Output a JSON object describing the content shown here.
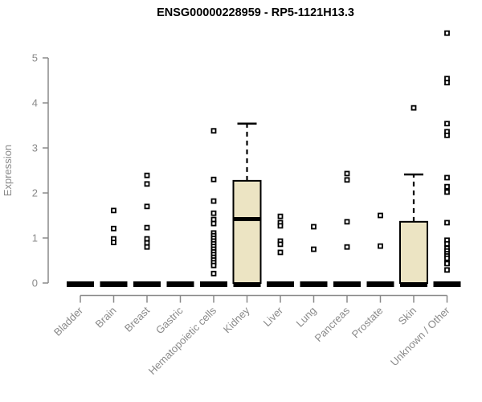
{
  "page": {
    "background": "#ffffff"
  },
  "chart_data": {
    "type": "boxplot",
    "title": "ENSG00000228959 - RP5-1121H13.3",
    "ylabel": "Expression",
    "xlabel": "",
    "ylim": [
      0,
      5
    ],
    "yticks": [
      0,
      1,
      2,
      3,
      4,
      5
    ],
    "grid": false,
    "legend": "none",
    "colors": {
      "box_fill": "#ece4c3",
      "box_stroke": "#000000",
      "median": "#000000",
      "axis": "#8a8a8a",
      "tick_label": "#8a8a8a",
      "title": "#000000",
      "point_stroke": "#000000",
      "point_fill": "#ffffff"
    },
    "categories": [
      "Bladder",
      "Brain",
      "Breast",
      "Gastric",
      "Hematopoietic cells",
      "Kidney",
      "Liver",
      "Lung",
      "Pancreas",
      "Prostate",
      "Skin",
      "Unknown / Other"
    ],
    "series": [
      {
        "name": "Bladder",
        "q1": 0,
        "median": 0,
        "q3": 0,
        "whisker_low": 0,
        "whisker_high": 0,
        "outliers": []
      },
      {
        "name": "Brain",
        "q1": 0,
        "median": 0,
        "q3": 0,
        "whisker_low": 0,
        "whisker_high": 0,
        "outliers": [
          1.61,
          1.21,
          0.98,
          0.9
        ]
      },
      {
        "name": "Breast",
        "q1": 0,
        "median": 0,
        "q3": 0,
        "whisker_low": 0,
        "whisker_high": 0,
        "outliers": [
          2.39,
          2.2,
          1.7,
          1.23,
          0.98,
          0.89,
          0.8
        ]
      },
      {
        "name": "Gastric",
        "q1": 0,
        "median": 0,
        "q3": 0,
        "whisker_low": 0,
        "whisker_high": 0,
        "outliers": []
      },
      {
        "name": "Hematopoietic cells",
        "q1": 0,
        "median": 0,
        "q3": 0,
        "whisker_low": 0,
        "whisker_high": 0,
        "outliers": [
          3.38,
          2.3,
          1.82,
          1.55,
          1.41,
          1.32,
          1.11,
          1.05,
          0.99,
          0.93,
          0.87,
          0.81,
          0.75,
          0.69,
          0.63,
          0.57,
          0.51,
          0.45,
          0.39,
          0.21
        ]
      },
      {
        "name": "Kidney",
        "q1": 0,
        "median": 1.42,
        "q3": 2.27,
        "whisker_low": 0,
        "whisker_high": 3.54,
        "outliers": []
      },
      {
        "name": "Liver",
        "q1": 0,
        "median": 0,
        "q3": 0,
        "whisker_low": 0,
        "whisker_high": 0,
        "outliers": [
          1.48,
          1.34,
          1.27,
          0.93,
          0.86,
          0.68
        ]
      },
      {
        "name": "Lung",
        "q1": 0,
        "median": 0,
        "q3": 0,
        "whisker_low": 0,
        "whisker_high": 0,
        "outliers": [
          1.25,
          0.75
        ]
      },
      {
        "name": "Pancreas",
        "q1": 0,
        "median": 0,
        "q3": 0,
        "whisker_low": 0,
        "whisker_high": 0,
        "outliers": [
          2.43,
          2.29,
          1.36,
          0.8
        ]
      },
      {
        "name": "Prostate",
        "q1": 0,
        "median": 0,
        "q3": 0,
        "whisker_low": 0,
        "whisker_high": 0,
        "outliers": [
          1.5,
          0.82
        ]
      },
      {
        "name": "Skin",
        "q1": 0,
        "median": 0,
        "q3": 1.36,
        "whisker_low": 0,
        "whisker_high": 2.41,
        "outliers": [
          3.89
        ]
      },
      {
        "name": "Unknown / Other",
        "q1": 0,
        "median": 0,
        "q3": 0,
        "whisker_low": 0,
        "whisker_high": 0,
        "outliers": [
          5.55,
          4.54,
          4.45,
          3.54,
          3.36,
          3.28,
          2.34,
          2.14,
          2.02,
          1.34,
          0.95,
          0.87,
          0.77,
          0.71,
          0.65,
          0.6,
          0.55,
          0.45,
          0.43,
          0.29
        ]
      }
    ]
  }
}
